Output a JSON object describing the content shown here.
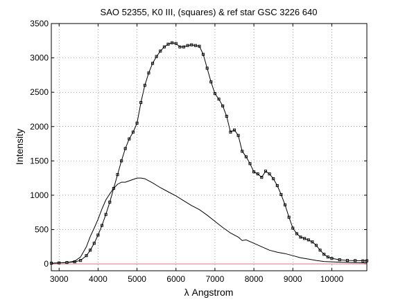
{
  "chart_data": {
    "type": "line",
    "title": "SAO 52355, K0 III, (squares) & ref star GSC 3226 640",
    "xlabel": "λ  Angstrom",
    "ylabel": "Intensity",
    "xlim": [
      2800,
      10900
    ],
    "ylim": [
      -100,
      3500
    ],
    "xticks": [
      3000,
      4000,
      5000,
      6000,
      7000,
      8000,
      9000,
      10000
    ],
    "yticks": [
      0,
      500,
      1000,
      1500,
      2000,
      2500,
      3000,
      3500
    ],
    "grid": true,
    "series": [
      {
        "marker": "square",
        "color": "#000000",
        "x": [
          2800,
          3000,
          3200,
          3400,
          3550,
          3700,
          3800,
          3900,
          4000,
          4100,
          4200,
          4300,
          4400,
          4500,
          4600,
          4700,
          4800,
          4900,
          5000,
          5100,
          5200,
          5300,
          5400,
          5500,
          5600,
          5700,
          5800,
          5900,
          6000,
          6100,
          6200,
          6300,
          6400,
          6500,
          6600,
          6700,
          6800,
          6900,
          7000,
          7100,
          7200,
          7300,
          7400,
          7500,
          7600,
          7700,
          7800,
          7900,
          8000,
          8100,
          8200,
          8300,
          8400,
          8500,
          8600,
          8700,
          8800,
          8900,
          9000,
          9100,
          9200,
          9300,
          9400,
          9500,
          9600,
          9700,
          9800,
          9900,
          10000,
          10200,
          10400,
          10600,
          10800,
          10900
        ],
        "y": [
          10,
          15,
          20,
          30,
          50,
          120,
          200,
          300,
          420,
          560,
          720,
          900,
          1100,
          1300,
          1500,
          1680,
          1820,
          1920,
          2050,
          2350,
          2600,
          2780,
          2920,
          3020,
          3100,
          3160,
          3200,
          3220,
          3210,
          3160,
          3160,
          3180,
          3190,
          3180,
          3170,
          3050,
          2850,
          2650,
          2480,
          2400,
          2300,
          2150,
          1920,
          1950,
          1870,
          1640,
          1560,
          1460,
          1340,
          1310,
          1260,
          1350,
          1310,
          1240,
          1140,
          1010,
          860,
          680,
          520,
          440,
          390,
          370,
          350,
          320,
          270,
          200,
          140,
          100,
          80,
          60,
          50,
          48,
          45,
          45
        ]
      },
      {
        "marker": "none",
        "color": "#000000",
        "x": [
          2800,
          3000,
          3200,
          3400,
          3550,
          3700,
          3800,
          3900,
          4000,
          4100,
          4200,
          4300,
          4400,
          4500,
          4600,
          4700,
          4800,
          4900,
          5000,
          5100,
          5200,
          5400,
          5600,
          5800,
          6000,
          6200,
          6400,
          6600,
          6800,
          7000,
          7200,
          7400,
          7600,
          7700,
          7800,
          8000,
          8200,
          8400,
          8600,
          8800,
          9000,
          9200,
          9400,
          9600,
          9800,
          10000,
          10200,
          10400,
          10600,
          10900
        ],
        "y": [
          10,
          15,
          20,
          40,
          100,
          250,
          400,
          520,
          650,
          800,
          930,
          1020,
          1100,
          1160,
          1190,
          1190,
          1210,
          1230,
          1250,
          1250,
          1240,
          1180,
          1110,
          1050,
          990,
          920,
          850,
          790,
          710,
          620,
          530,
          450,
          390,
          340,
          350,
          300,
          250,
          200,
          170,
          150,
          120,
          90,
          70,
          50,
          35,
          30,
          25,
          22,
          18,
          15
        ]
      }
    ]
  }
}
